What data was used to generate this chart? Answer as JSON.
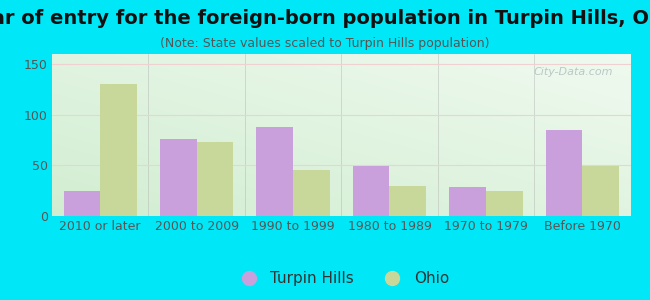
{
  "title": "Year of entry for the foreign-born population in Turpin Hills, Ohio",
  "subtitle": "(Note: State values scaled to Turpin Hills population)",
  "categories": [
    "2010 or later",
    "2000 to 2009",
    "1990 to 1999",
    "1980 to 1989",
    "1970 to 1979",
    "Before 1970"
  ],
  "turpin_hills": [
    25,
    76,
    88,
    49,
    29,
    85
  ],
  "ohio": [
    130,
    73,
    45,
    30,
    25,
    49
  ],
  "turpin_color": "#c9a0dc",
  "ohio_color": "#c8d89a",
  "background_outer": "#00e8f8",
  "background_inner_tl": "#d0ede0",
  "background_inner_tr": "#eef7f2",
  "background_inner_br": "#f5f5f5",
  "ylim": [
    0,
    160
  ],
  "yticks": [
    0,
    50,
    100,
    150
  ],
  "bar_width": 0.38,
  "title_fontsize": 14,
  "subtitle_fontsize": 9,
  "tick_fontsize": 9,
  "legend_fontsize": 11,
  "watermark_text": "City-Data.com",
  "grid_color": "#f0d0d0",
  "separator_color": "#b0b0b0"
}
